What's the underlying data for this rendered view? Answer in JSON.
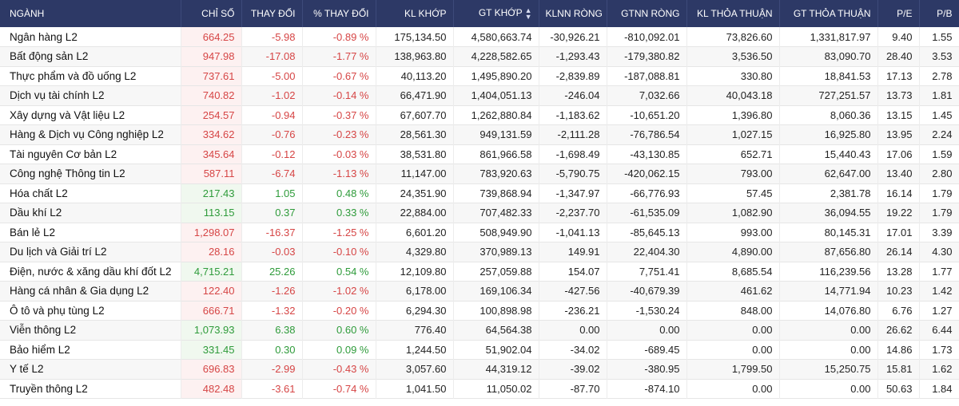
{
  "colors": {
    "header_bg": "#2d3966",
    "up": "#2e9b3a",
    "down": "#d64545"
  },
  "table": {
    "headers": [
      "NGÀNH",
      "CHỈ SỐ",
      "THAY ĐỔI",
      "% THAY ĐỔI",
      "KL KHỚP",
      "GT KHỚP",
      "KLNN RÒNG",
      "GTNN RÒNG",
      "KL THỎA THUẬN",
      "GT THỎA THUẬN",
      "P/E",
      "P/B"
    ],
    "sort_icon": "sort-up-down-icon",
    "rows": [
      {
        "name": "Ngân hàng L2",
        "index": "664.25",
        "change": "-5.98",
        "pct": "-0.89 %",
        "kl_khop": "175,134.50",
        "gt_khop": "4,580,663.74",
        "klnn": "-30,926.21",
        "gtnn": "-810,092.01",
        "kl_tt": "73,826.60",
        "gt_tt": "1,331,817.97",
        "pe": "9.40",
        "pb": "1.55",
        "dir": "down"
      },
      {
        "name": "Bất động sản L2",
        "index": "947.98",
        "change": "-17.08",
        "pct": "-1.77 %",
        "kl_khop": "138,963.80",
        "gt_khop": "4,228,582.65",
        "klnn": "-1,293.43",
        "gtnn": "-179,380.82",
        "kl_tt": "3,536.50",
        "gt_tt": "83,090.70",
        "pe": "28.40",
        "pb": "3.53",
        "dir": "down"
      },
      {
        "name": "Thực phẩm và đồ uống L2",
        "index": "737.61",
        "change": "-5.00",
        "pct": "-0.67 %",
        "kl_khop": "40,113.20",
        "gt_khop": "1,495,890.20",
        "klnn": "-2,839.89",
        "gtnn": "-187,088.81",
        "kl_tt": "330.80",
        "gt_tt": "18,841.53",
        "pe": "17.13",
        "pb": "2.78",
        "dir": "down"
      },
      {
        "name": "Dịch vụ tài chính L2",
        "index": "740.82",
        "change": "-1.02",
        "pct": "-0.14 %",
        "kl_khop": "66,471.90",
        "gt_khop": "1,404,051.13",
        "klnn": "-246.04",
        "gtnn": "7,032.66",
        "kl_tt": "40,043.18",
        "gt_tt": "727,251.57",
        "pe": "13.73",
        "pb": "1.81",
        "dir": "down"
      },
      {
        "name": "Xây dựng và Vật liệu L2",
        "index": "254.57",
        "change": "-0.94",
        "pct": "-0.37 %",
        "kl_khop": "67,607.70",
        "gt_khop": "1,262,880.84",
        "klnn": "-1,183.62",
        "gtnn": "-10,651.20",
        "kl_tt": "1,396.80",
        "gt_tt": "8,060.36",
        "pe": "13.15",
        "pb": "1.45",
        "dir": "down"
      },
      {
        "name": "Hàng & Dịch vụ Công nghiệp L2",
        "index": "334.62",
        "change": "-0.76",
        "pct": "-0.23 %",
        "kl_khop": "28,561.30",
        "gt_khop": "949,131.59",
        "klnn": "-2,111.28",
        "gtnn": "-76,786.54",
        "kl_tt": "1,027.15",
        "gt_tt": "16,925.80",
        "pe": "13.95",
        "pb": "2.24",
        "dir": "down"
      },
      {
        "name": "Tài nguyên Cơ bản L2",
        "index": "345.64",
        "change": "-0.12",
        "pct": "-0.03 %",
        "kl_khop": "38,531.80",
        "gt_khop": "861,966.58",
        "klnn": "-1,698.49",
        "gtnn": "-43,130.85",
        "kl_tt": "652.71",
        "gt_tt": "15,440.43",
        "pe": "17.06",
        "pb": "1.59",
        "dir": "down"
      },
      {
        "name": "Công nghệ Thông tin L2",
        "index": "587.11",
        "change": "-6.74",
        "pct": "-1.13 %",
        "kl_khop": "11,147.00",
        "gt_khop": "783,920.63",
        "klnn": "-5,790.75",
        "gtnn": "-420,062.15",
        "kl_tt": "793.00",
        "gt_tt": "62,647.00",
        "pe": "13.40",
        "pb": "2.80",
        "dir": "down"
      },
      {
        "name": "Hóa chất L2",
        "index": "217.43",
        "change": "1.05",
        "pct": "0.48 %",
        "kl_khop": "24,351.90",
        "gt_khop": "739,868.94",
        "klnn": "-1,347.97",
        "gtnn": "-66,776.93",
        "kl_tt": "57.45",
        "gt_tt": "2,381.78",
        "pe": "16.14",
        "pb": "1.79",
        "dir": "up"
      },
      {
        "name": "Dầu khí L2",
        "index": "113.15",
        "change": "0.37",
        "pct": "0.33 %",
        "kl_khop": "22,884.00",
        "gt_khop": "707,482.33",
        "klnn": "-2,237.70",
        "gtnn": "-61,535.09",
        "kl_tt": "1,082.90",
        "gt_tt": "36,094.55",
        "pe": "19.22",
        "pb": "1.79",
        "dir": "up"
      },
      {
        "name": "Bán lẻ L2",
        "index": "1,298.07",
        "change": "-16.37",
        "pct": "-1.25 %",
        "kl_khop": "6,601.20",
        "gt_khop": "508,949.90",
        "klnn": "-1,041.13",
        "gtnn": "-85,645.13",
        "kl_tt": "993.00",
        "gt_tt": "80,145.31",
        "pe": "17.01",
        "pb": "3.39",
        "dir": "down"
      },
      {
        "name": "Du lịch và Giải trí L2",
        "index": "28.16",
        "change": "-0.03",
        "pct": "-0.10 %",
        "kl_khop": "4,329.80",
        "gt_khop": "370,989.13",
        "klnn": "149.91",
        "gtnn": "22,404.30",
        "kl_tt": "4,890.00",
        "gt_tt": "87,656.80",
        "pe": "26.14",
        "pb": "4.30",
        "dir": "down"
      },
      {
        "name": "Điện, nước & xăng dầu khí đốt L2",
        "index": "4,715.21",
        "change": "25.26",
        "pct": "0.54 %",
        "kl_khop": "12,109.80",
        "gt_khop": "257,059.88",
        "klnn": "154.07",
        "gtnn": "7,751.41",
        "kl_tt": "8,685.54",
        "gt_tt": "116,239.56",
        "pe": "13.28",
        "pb": "1.77",
        "dir": "up"
      },
      {
        "name": "Hàng cá nhân & Gia dụng L2",
        "index": "122.40",
        "change": "-1.26",
        "pct": "-1.02 %",
        "kl_khop": "6,178.00",
        "gt_khop": "169,106.34",
        "klnn": "-427.56",
        "gtnn": "-40,679.39",
        "kl_tt": "461.62",
        "gt_tt": "14,771.94",
        "pe": "10.23",
        "pb": "1.42",
        "dir": "down"
      },
      {
        "name": "Ô tô và phụ tùng L2",
        "index": "666.71",
        "change": "-1.32",
        "pct": "-0.20 %",
        "kl_khop": "6,294.30",
        "gt_khop": "100,898.98",
        "klnn": "-236.21",
        "gtnn": "-1,530.24",
        "kl_tt": "848.00",
        "gt_tt": "14,076.80",
        "pe": "6.76",
        "pb": "1.27",
        "dir": "down"
      },
      {
        "name": "Viễn thông L2",
        "index": "1,073.93",
        "change": "6.38",
        "pct": "0.60 %",
        "kl_khop": "776.40",
        "gt_khop": "64,564.38",
        "klnn": "0.00",
        "gtnn": "0.00",
        "kl_tt": "0.00",
        "gt_tt": "0.00",
        "pe": "26.62",
        "pb": "6.44",
        "dir": "up"
      },
      {
        "name": "Bảo hiểm L2",
        "index": "331.45",
        "change": "0.30",
        "pct": "0.09 %",
        "kl_khop": "1,244.50",
        "gt_khop": "51,902.04",
        "klnn": "-34.02",
        "gtnn": "-689.45",
        "kl_tt": "0.00",
        "gt_tt": "0.00",
        "pe": "14.86",
        "pb": "1.73",
        "dir": "up"
      },
      {
        "name": "Y tế L2",
        "index": "696.83",
        "change": "-2.99",
        "pct": "-0.43 %",
        "kl_khop": "3,057.60",
        "gt_khop": "44,319.12",
        "klnn": "-39.02",
        "gtnn": "-380.95",
        "kl_tt": "1,799.50",
        "gt_tt": "15,250.75",
        "pe": "15.81",
        "pb": "1.62",
        "dir": "down"
      },
      {
        "name": "Truyền thông L2",
        "index": "482.48",
        "change": "-3.61",
        "pct": "-0.74 %",
        "kl_khop": "1,041.50",
        "gt_khop": "11,050.02",
        "klnn": "-87.70",
        "gtnn": "-874.10",
        "kl_tt": "0.00",
        "gt_tt": "0.00",
        "pe": "50.63",
        "pb": "1.84",
        "dir": "down"
      }
    ]
  }
}
